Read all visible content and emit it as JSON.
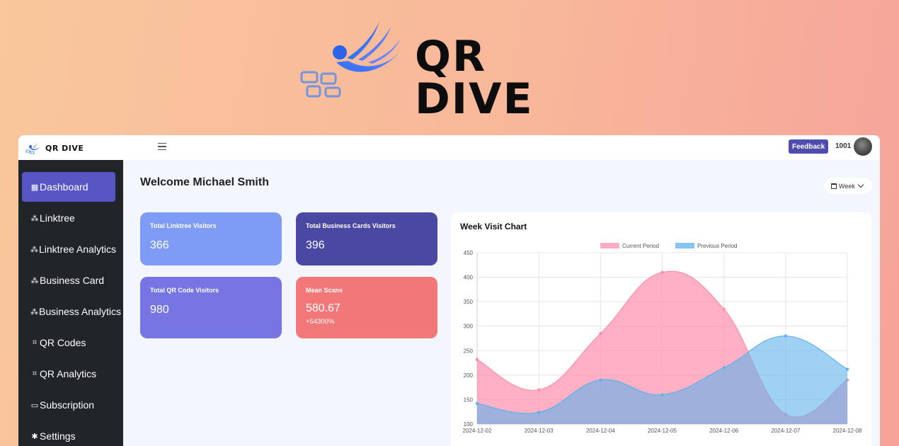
{
  "hero": {
    "title": "QR DIVE"
  },
  "topbar": {
    "brand": "QR DIVE",
    "feedback_label": "Feedback",
    "user_id": "1001"
  },
  "sidebar": {
    "items": [
      {
        "label": "Dashboard",
        "icon": "dashboard-icon",
        "glyph": "▦",
        "active": true
      },
      {
        "label": "Linktree",
        "icon": "linktree-icon",
        "glyph": "⁂",
        "active": false
      },
      {
        "label": "Linktree Analytics",
        "icon": "linktree-analytics-icon",
        "glyph": "⁂",
        "active": false
      },
      {
        "label": "Business Card",
        "icon": "business-card-icon",
        "glyph": "⁂",
        "active": false
      },
      {
        "label": "Business Analytics",
        "icon": "business-analytics-icon",
        "glyph": "⁂",
        "active": false
      },
      {
        "label": "QR Codes",
        "icon": "qr-code-icon",
        "glyph": "⌗",
        "active": false
      },
      {
        "label": "QR Analytics",
        "icon": "qr-analytics-icon",
        "glyph": "⌗",
        "active": false
      },
      {
        "label": "Subscription",
        "icon": "subscription-icon",
        "glyph": "▭",
        "active": false
      },
      {
        "label": "Settings",
        "icon": "gear-icon",
        "glyph": "✱",
        "active": false
      }
    ]
  },
  "main": {
    "welcome": "Welcome Michael Smith",
    "period_select": "Week",
    "cards": [
      {
        "label": "Total Linktree Visitors",
        "value": "366",
        "color": "#7f9cf5"
      },
      {
        "label": "Total Business Cards Visitors",
        "value": "396",
        "color": "#4b48a3"
      },
      {
        "label": "Total QR Code Visitors",
        "value": "980",
        "color": "#7774e3"
      },
      {
        "label": "Mean Scans",
        "value": "580.67",
        "sub": "+54300%",
        "color": "#f17779"
      }
    ]
  },
  "chart_data": {
    "type": "area",
    "title": "Week Visit Chart",
    "x": [
      "2024-12-02",
      "2024-12-03",
      "2024-12-04",
      "2024-12-05",
      "2024-12-06",
      "2024-12-07",
      "2024-12-08"
    ],
    "ylim": [
      100,
      450
    ],
    "yticks": [
      100,
      150,
      200,
      250,
      300,
      350,
      400,
      450
    ],
    "grid": true,
    "legend": "top",
    "series": [
      {
        "name": "Current Period",
        "values": [
          232,
          170,
          285,
          410,
          335,
          120,
          190
        ],
        "color": "#ff8fab"
      },
      {
        "name": "Previous Period",
        "values": [
          142,
          124,
          190,
          160,
          215,
          280,
          212
        ],
        "color": "#5eb2ec"
      }
    ]
  }
}
